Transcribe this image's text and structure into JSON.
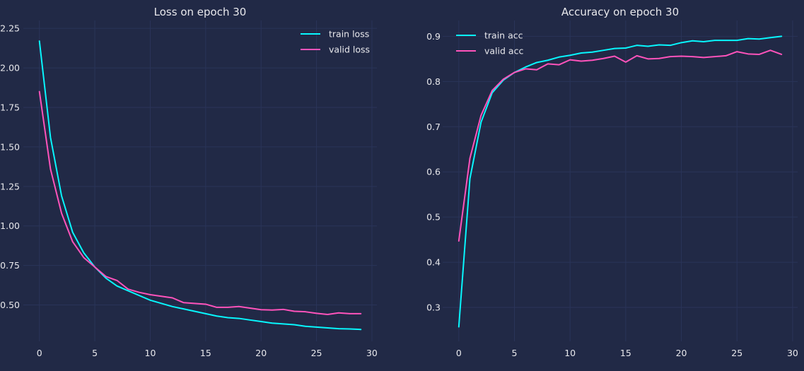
{
  "chart_data": [
    {
      "type": "line",
      "title": "Loss on epoch 30",
      "xlabel": "",
      "ylabel": "",
      "xlim": [
        -1.45,
        30.45
      ],
      "ylim": [
        0.27,
        2.3
      ],
      "xticks": [
        0,
        5,
        10,
        15,
        20,
        25,
        30
      ],
      "yticks": [
        0.5,
        0.75,
        1.0,
        1.25,
        1.5,
        1.75,
        2.0,
        2.25
      ],
      "ytick_labels": [
        "0.50",
        "0.75",
        "1.00",
        "1.25",
        "1.50",
        "1.75",
        "2.00",
        "2.25"
      ],
      "grid": true,
      "legend_position": "top-right",
      "x": [
        0,
        1,
        2,
        3,
        4,
        5,
        6,
        7,
        8,
        9,
        10,
        11,
        12,
        13,
        14,
        15,
        16,
        17,
        18,
        19,
        20,
        21,
        22,
        23,
        24,
        25,
        26,
        27,
        28,
        29
      ],
      "series": [
        {
          "name": "train loss",
          "color": "#08F7FE",
          "values": [
            2.17,
            1.56,
            1.19,
            0.96,
            0.83,
            0.74,
            0.67,
            0.62,
            0.59,
            0.56,
            0.53,
            0.51,
            0.49,
            0.475,
            0.46,
            0.445,
            0.43,
            0.42,
            0.415,
            0.405,
            0.395,
            0.385,
            0.38,
            0.375,
            0.365,
            0.36,
            0.355,
            0.35,
            0.348,
            0.345
          ]
        },
        {
          "name": "valid loss",
          "color": "#FE53BB",
          "values": [
            1.85,
            1.36,
            1.08,
            0.9,
            0.8,
            0.74,
            0.68,
            0.655,
            0.6,
            0.58,
            0.565,
            0.555,
            0.545,
            0.515,
            0.51,
            0.505,
            0.485,
            0.485,
            0.49,
            0.48,
            0.47,
            0.468,
            0.472,
            0.46,
            0.457,
            0.447,
            0.44,
            0.45,
            0.445,
            0.445
          ]
        }
      ]
    },
    {
      "type": "line",
      "title": "Accuracy on epoch 30",
      "xlabel": "",
      "ylabel": "",
      "xlim": [
        -1.45,
        30.45
      ],
      "ylim": [
        0.225,
        0.935
      ],
      "xticks": [
        0,
        5,
        10,
        15,
        20,
        25,
        30
      ],
      "yticks": [
        0.3,
        0.4,
        0.5,
        0.6,
        0.7,
        0.8,
        0.9
      ],
      "ytick_labels": [
        "0.3",
        "0.4",
        "0.5",
        "0.6",
        "0.7",
        "0.8",
        "0.9"
      ],
      "grid": true,
      "legend_position": "top-left",
      "x": [
        0,
        1,
        2,
        3,
        4,
        5,
        6,
        7,
        8,
        9,
        10,
        11,
        12,
        13,
        14,
        15,
        16,
        17,
        18,
        19,
        20,
        21,
        22,
        23,
        24,
        25,
        26,
        27,
        28,
        29
      ],
      "series": [
        {
          "name": "train acc",
          "color": "#08F7FE",
          "values": [
            0.257,
            0.585,
            0.71,
            0.775,
            0.803,
            0.82,
            0.832,
            0.842,
            0.847,
            0.854,
            0.858,
            0.863,
            0.865,
            0.869,
            0.873,
            0.874,
            0.88,
            0.878,
            0.881,
            0.88,
            0.886,
            0.89,
            0.888,
            0.891,
            0.891,
            0.891,
            0.895,
            0.894,
            0.897,
            0.9
          ]
        },
        {
          "name": "valid acc",
          "color": "#FE53BB",
          "values": [
            0.447,
            0.63,
            0.725,
            0.78,
            0.805,
            0.82,
            0.828,
            0.826,
            0.839,
            0.837,
            0.848,
            0.845,
            0.847,
            0.851,
            0.856,
            0.843,
            0.857,
            0.85,
            0.851,
            0.855,
            0.856,
            0.855,
            0.853,
            0.855,
            0.857,
            0.866,
            0.861,
            0.86,
            0.869,
            0.86
          ]
        }
      ]
    }
  ]
}
